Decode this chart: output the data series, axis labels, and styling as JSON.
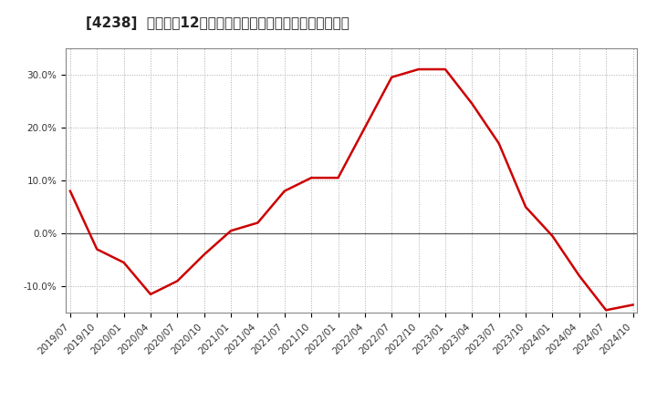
{
  "title": "[4238]  売上高の12か月移動合計の対前年同期増減率の推移",
  "line_color": "#cc0000",
  "background_color": "#ffffff",
  "grid_color": "#aaaaaa",
  "zero_line_color": "#555555",
  "spine_color": "#888888",
  "x_labels": [
    "2019/07",
    "2019/10",
    "2020/01",
    "2020/04",
    "2020/07",
    "2020/10",
    "2021/01",
    "2021/04",
    "2021/07",
    "2021/10",
    "2022/01",
    "2022/04",
    "2022/07",
    "2022/10",
    "2023/01",
    "2023/04",
    "2023/07",
    "2023/10",
    "2024/01",
    "2024/04",
    "2024/07",
    "2024/10"
  ],
  "x_values": [
    0,
    3,
    6,
    9,
    12,
    15,
    18,
    21,
    24,
    27,
    30,
    33,
    36,
    39,
    42,
    45,
    48,
    51,
    54,
    57,
    60,
    63
  ],
  "y_values": [
    0.08,
    -0.03,
    -0.055,
    -0.115,
    -0.09,
    -0.04,
    0.005,
    0.02,
    0.08,
    0.105,
    0.105,
    0.2,
    0.295,
    0.31,
    0.31,
    0.245,
    0.17,
    0.05,
    -0.005,
    -0.08,
    -0.145,
    -0.135
  ],
  "ylim": [
    -0.15,
    0.35
  ],
  "yticks": [
    -0.1,
    0.0,
    0.1,
    0.2,
    0.3
  ],
  "ytick_labels": [
    "-10.0%",
    "0.0%",
    "10.0%",
    "20.0%",
    "30.0%"
  ],
  "title_fontsize": 11,
  "tick_fontsize": 7.5,
  "line_width": 1.8
}
